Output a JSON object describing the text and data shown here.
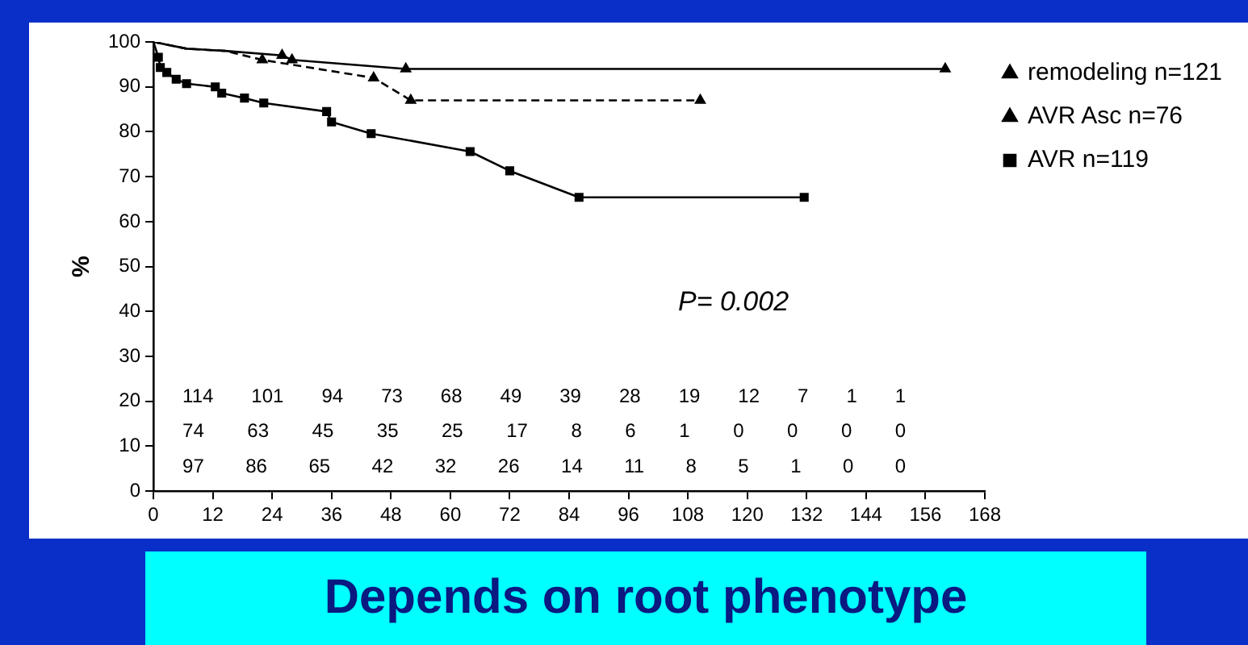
{
  "chart_data": {
    "type": "line",
    "title": "Depends on root phenotype",
    "ylabel": "%",
    "series": [
      {
        "name": "remodeling n=121",
        "color": "#000000",
        "line_style": "solid",
        "marker": "triangle",
        "x": [
          0,
          6.7,
          14.5,
          26,
          28,
          51,
          160
        ],
        "values": [
          100,
          98.5,
          98,
          97,
          96,
          94,
          94
        ]
      },
      {
        "name": "AVR Asc n=76",
        "color": "#000000",
        "line_style": "dashed",
        "marker": "triangle",
        "x": [
          0,
          6.7,
          14.5,
          22,
          44.5,
          52,
          110.5
        ],
        "values": [
          100,
          98.5,
          98,
          96,
          92,
          87,
          87
        ]
      },
      {
        "name": "AVR n=119",
        "color": "#000000",
        "line_style": "solid",
        "marker": "square",
        "x": [
          0,
          1,
          1.4,
          2.7,
          4.6,
          6.7,
          12.5,
          13.8,
          18.4,
          22.3,
          35,
          36,
          44,
          64,
          72,
          86,
          131.5
        ],
        "values": [
          100,
          96.6,
          94.3,
          93.2,
          91.7,
          90.7,
          90,
          88.6,
          87.5,
          86.4,
          84.5,
          82.2,
          79.6,
          75.6,
          71.3,
          65.4,
          65.4
        ]
      }
    ],
    "xlim": [
      0,
      168
    ],
    "xticks": [
      0,
      12,
      24,
      36,
      48,
      60,
      72,
      84,
      96,
      108,
      120,
      132,
      144,
      156,
      168
    ],
    "ylim": [
      0,
      100
    ],
    "yticks": [
      0,
      10,
      20,
      30,
      40,
      50,
      60,
      70,
      80,
      90,
      100
    ],
    "grid": false,
    "legend": "right",
    "annotations": [
      "P= 0.002",
      "114 101 94 73 68 49 39 28 19 12 7 1 1",
      "74 63 45 35 25 17 8 6 1 0 0 0 0",
      "97 86 65 42 32 26 14 11 8 5 1 0 0"
    ]
  }
}
